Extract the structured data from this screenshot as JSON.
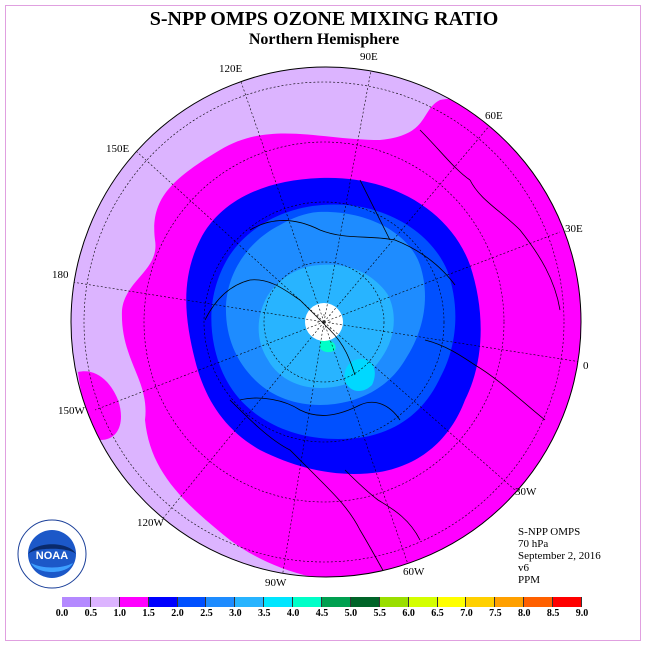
{
  "title": "S-NPP OMPS OZONE MIXING RATIO",
  "subtitle": "Northern Hemisphere",
  "longitude_labels": {
    "e90": "90E",
    "e120": "120E",
    "e150": "150E",
    "e60": "60E",
    "e30": "30E",
    "lon180": "180",
    "lon0": "0",
    "w150": "150W",
    "w120": "120W",
    "w90": "90W",
    "w60": "60W",
    "w30": "30W"
  },
  "info": {
    "instrument": "S-NPP OMPS",
    "level": "70 hPa",
    "date": "September 2, 2016",
    "version": "v6",
    "units": "PPM"
  },
  "logo": {
    "text": "NOAA"
  },
  "colorbar": {
    "ticks": [
      "0.0",
      "0.5",
      "1.0",
      "1.5",
      "2.0",
      "2.5",
      "3.0",
      "3.5",
      "4.0",
      "4.5",
      "5.0",
      "5.5",
      "6.0",
      "6.5",
      "7.0",
      "7.5",
      "8.0",
      "8.5",
      "9.0"
    ],
    "colors": [
      "#b489ff",
      "#dcb4ff",
      "#ff00ff",
      "#0000ff",
      "#0050ff",
      "#1e8cff",
      "#28b4ff",
      "#00e6ff",
      "#00ffc8",
      "#00a050",
      "#006428",
      "#9ade00",
      "#d4ff00",
      "#ffff00",
      "#ffd000",
      "#ffa000",
      "#ff6000",
      "#ff0000",
      "#8b5a3c"
    ]
  },
  "map_legend_levels": {
    "outer_band": "#dcb4ff",
    "mid_band": "#ff00ff",
    "ring_dark_blue": "#0000ff",
    "ring_blue": "#0050ff",
    "ring_light": "#1e8cff",
    "core": "#28b4ff",
    "core_cyan": "#00d8ff",
    "polar_missing": "#ffffff"
  }
}
